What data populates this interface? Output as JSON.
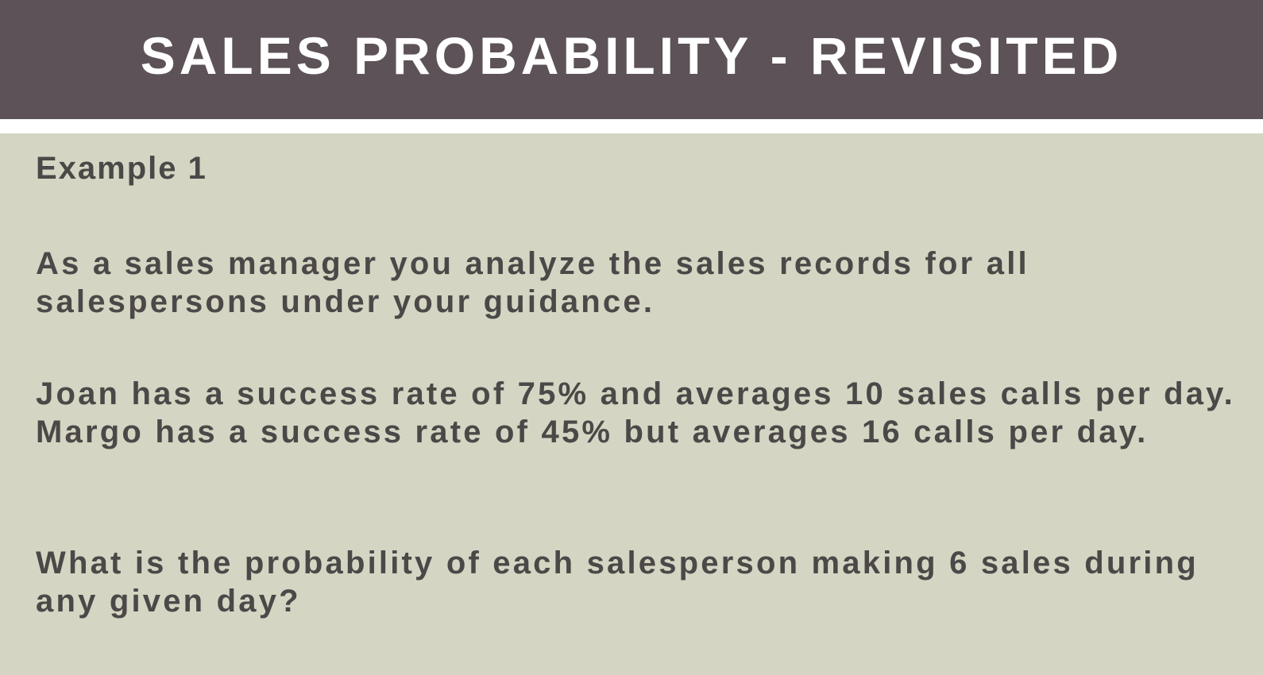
{
  "slide": {
    "title": "SALES PROBABILITY - REVISITED",
    "example_label": "Example 1",
    "paragraphs": [
      "As a sales manager you analyze the sales records for all salespersons under your guidance.",
      "Joan has a success rate of 75% and averages 10 sales calls per day. Margo has a success rate of 45% but averages 16 calls per day.",
      "What is the probability of each salesperson making 6 sales during any given day?"
    ]
  },
  "colors": {
    "title_bar": "#5c5257",
    "title_text": "#ffffff",
    "divider": "#ffffff",
    "content_background": "#d4d6c3",
    "body_text": "#4d4848"
  }
}
